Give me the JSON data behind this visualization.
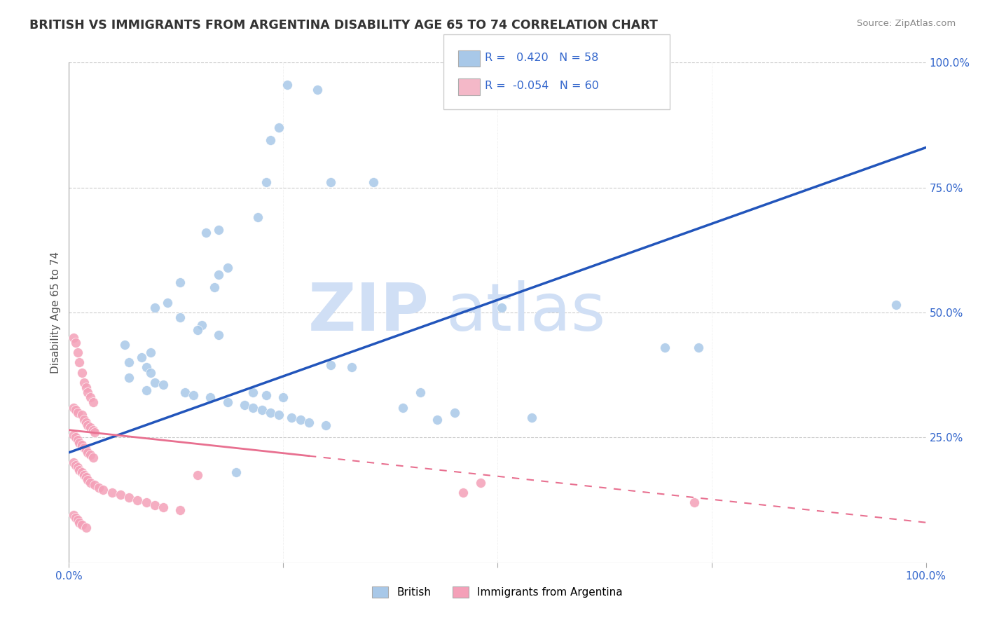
{
  "title": "BRITISH VS IMMIGRANTS FROM ARGENTINA DISABILITY AGE 65 TO 74 CORRELATION CHART",
  "source": "Source: ZipAtlas.com",
  "ylabel": "Disability Age 65 to 74",
  "xlim": [
    0.0,
    1.0
  ],
  "ylim": [
    0.0,
    1.0
  ],
  "british_R": 0.42,
  "british_N": 58,
  "argentina_R": -0.054,
  "argentina_N": 60,
  "british_color": "#a8c8e8",
  "argentina_color": "#f4a0b8",
  "british_line_color": "#2255bb",
  "argentina_line_color": "#e87090",
  "legend_blue_fill": "#a8c8e8",
  "legend_pink_fill": "#f4b8c8",
  "text_color": "#3366cc",
  "watermark_color": "#d0dff5",
  "british_x": [
    0.255,
    0.29,
    0.245,
    0.235,
    0.23,
    0.305,
    0.355,
    0.22,
    0.175,
    0.16,
    0.185,
    0.175,
    0.13,
    0.17,
    0.115,
    0.1,
    0.13,
    0.155,
    0.15,
    0.175,
    0.065,
    0.095,
    0.085,
    0.07,
    0.09,
    0.095,
    0.07,
    0.1,
    0.11,
    0.09,
    0.135,
    0.145,
    0.165,
    0.185,
    0.205,
    0.215,
    0.225,
    0.235,
    0.245,
    0.26,
    0.27,
    0.28,
    0.3,
    0.215,
    0.23,
    0.25,
    0.305,
    0.33,
    0.39,
    0.45,
    0.54,
    0.43,
    0.695,
    0.735,
    0.965,
    0.505,
    0.41,
    0.195
  ],
  "british_y": [
    0.955,
    0.945,
    0.87,
    0.845,
    0.76,
    0.76,
    0.76,
    0.69,
    0.665,
    0.66,
    0.59,
    0.575,
    0.56,
    0.55,
    0.52,
    0.51,
    0.49,
    0.475,
    0.465,
    0.455,
    0.435,
    0.42,
    0.41,
    0.4,
    0.39,
    0.38,
    0.37,
    0.36,
    0.355,
    0.345,
    0.34,
    0.335,
    0.33,
    0.32,
    0.315,
    0.31,
    0.305,
    0.3,
    0.295,
    0.29,
    0.285,
    0.28,
    0.275,
    0.34,
    0.335,
    0.33,
    0.395,
    0.39,
    0.31,
    0.3,
    0.29,
    0.285,
    0.43,
    0.43,
    0.515,
    0.51,
    0.34,
    0.18
  ],
  "argentina_x": [
    0.005,
    0.008,
    0.01,
    0.012,
    0.015,
    0.018,
    0.02,
    0.022,
    0.025,
    0.028,
    0.005,
    0.008,
    0.01,
    0.015,
    0.018,
    0.02,
    0.022,
    0.025,
    0.028,
    0.03,
    0.005,
    0.008,
    0.01,
    0.012,
    0.015,
    0.018,
    0.02,
    0.022,
    0.025,
    0.028,
    0.005,
    0.008,
    0.01,
    0.012,
    0.015,
    0.018,
    0.02,
    0.022,
    0.025,
    0.03,
    0.035,
    0.04,
    0.05,
    0.06,
    0.07,
    0.08,
    0.09,
    0.1,
    0.11,
    0.13,
    0.005,
    0.008,
    0.01,
    0.012,
    0.015,
    0.02,
    0.15,
    0.48,
    0.46,
    0.73
  ],
  "argentina_y": [
    0.45,
    0.44,
    0.42,
    0.4,
    0.38,
    0.36,
    0.35,
    0.34,
    0.33,
    0.32,
    0.31,
    0.305,
    0.3,
    0.295,
    0.285,
    0.28,
    0.275,
    0.27,
    0.265,
    0.26,
    0.255,
    0.25,
    0.245,
    0.24,
    0.235,
    0.23,
    0.225,
    0.22,
    0.215,
    0.21,
    0.2,
    0.195,
    0.19,
    0.185,
    0.18,
    0.175,
    0.17,
    0.165,
    0.16,
    0.155,
    0.15,
    0.145,
    0.14,
    0.135,
    0.13,
    0.125,
    0.12,
    0.115,
    0.11,
    0.105,
    0.095,
    0.09,
    0.085,
    0.08,
    0.075,
    0.07,
    0.175,
    0.16,
    0.14,
    0.12
  ],
  "british_trendline_x": [
    0.0,
    1.0
  ],
  "british_trendline_y": [
    0.22,
    0.83
  ],
  "argentina_trendline_x": [
    0.0,
    1.0
  ],
  "argentina_trendline_y": [
    0.265,
    0.08
  ]
}
